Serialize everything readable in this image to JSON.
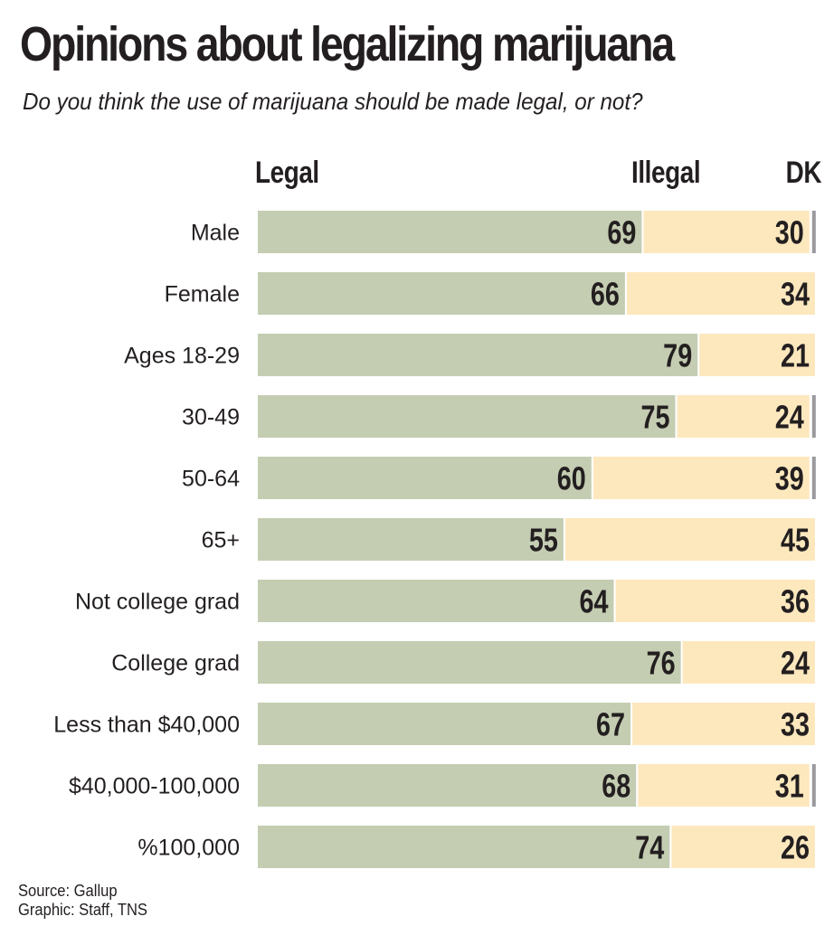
{
  "title": "Opinions about legalizing marijuana",
  "subtitle": "Do you think the use of marijuana should be made legal, or not?",
  "footer": {
    "source": "Source: Gallup",
    "credit": "Graphic: Staff, TNS"
  },
  "colors": {
    "legal": "#c4cdb2",
    "illegal": "#fde8be",
    "dk": "#9a9a9e",
    "text": "#231f20"
  },
  "chart_data": {
    "type": "bar",
    "orientation": "horizontal",
    "stacked": true,
    "title": "Opinions about legalizing marijuana",
    "subtitle": "Do you think the use of marijuana should be made legal, or not?",
    "xlabel": "",
    "ylabel": "",
    "xlim": [
      0,
      100
    ],
    "grid": false,
    "legend": {
      "placement": "top",
      "entries": [
        "Legal",
        "Illegal",
        "DK"
      ]
    },
    "categories": [
      "Male",
      "Female",
      "Ages 18-29",
      "30-49",
      "50-64",
      "65+",
      "Not college grad",
      "College grad",
      "Less than $40,000",
      "$40,000-100,000",
      "%100,000"
    ],
    "series": [
      {
        "name": "Legal",
        "values": [
          69,
          66,
          79,
          75,
          60,
          55,
          64,
          76,
          67,
          68,
          74
        ]
      },
      {
        "name": "Illegal",
        "values": [
          30,
          34,
          21,
          24,
          39,
          45,
          36,
          24,
          33,
          31,
          26
        ]
      },
      {
        "name": "DK",
        "values": [
          1,
          0,
          0,
          1,
          1,
          0,
          0,
          0,
          0,
          1,
          0
        ]
      }
    ],
    "source": "Source: Gallup",
    "credit": "Graphic: Staff, TNS"
  }
}
